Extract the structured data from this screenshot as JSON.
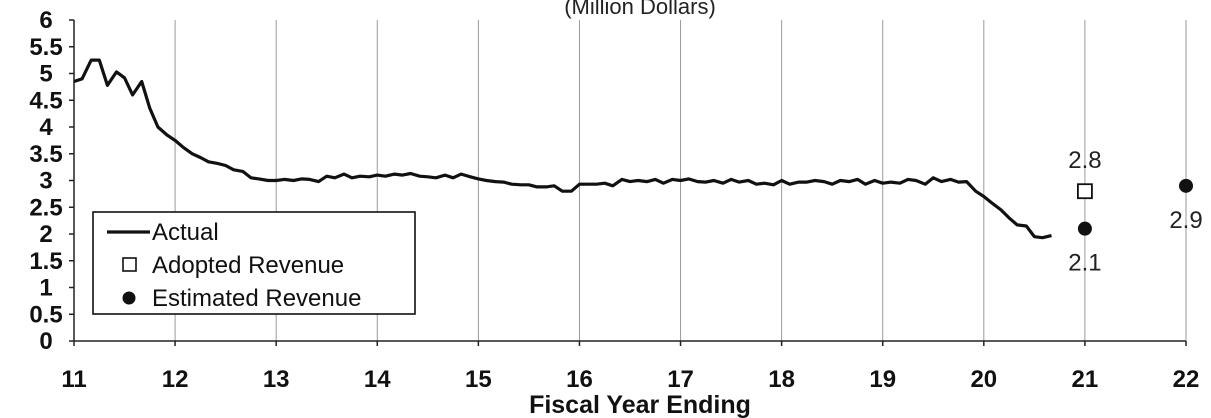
{
  "chart_data": {
    "type": "line",
    "subtitle": "(Million Dollars)",
    "xlabel": "Fiscal Year Ending",
    "ylabel": "",
    "xlim": [
      11,
      22
    ],
    "ylim": [
      0,
      6
    ],
    "x_ticks": [
      "11",
      "12",
      "13",
      "14",
      "15",
      "16",
      "17",
      "18",
      "19",
      "20",
      "21",
      "22"
    ],
    "y_ticks": [
      "0",
      "0.5",
      "1",
      "1.5",
      "2",
      "2.5",
      "3",
      "3.5",
      "4",
      "4.5",
      "5",
      "5.5",
      "6"
    ],
    "grid": "vertical",
    "legend_position": "bottom-left",
    "legend": [
      "Actual",
      "Adopted Revenue",
      "Estimated Revenue"
    ],
    "series": [
      {
        "name": "Actual",
        "style": "line",
        "color": "#111111",
        "x": [
          11.0,
          11.08,
          11.17,
          11.25,
          11.33,
          11.42,
          11.5,
          11.58,
          11.67,
          11.75,
          11.83,
          11.92,
          12.0,
          12.08,
          12.17,
          12.25,
          12.33,
          12.42,
          12.5,
          12.58,
          12.67,
          12.75,
          12.83,
          12.92,
          13.0,
          13.08,
          13.17,
          13.25,
          13.33,
          13.42,
          13.5,
          13.58,
          13.67,
          13.75,
          13.83,
          13.92,
          14.0,
          14.08,
          14.17,
          14.25,
          14.33,
          14.42,
          14.5,
          14.58,
          14.67,
          14.75,
          14.83,
          14.92,
          15.0,
          15.08,
          15.17,
          15.25,
          15.33,
          15.42,
          15.5,
          15.58,
          15.67,
          15.75,
          15.83,
          15.92,
          16.0,
          16.08,
          16.17,
          16.25,
          16.33,
          16.42,
          16.5,
          16.58,
          16.67,
          16.75,
          16.83,
          16.92,
          17.0,
          17.08,
          17.17,
          17.25,
          17.33,
          17.42,
          17.5,
          17.58,
          17.67,
          17.75,
          17.83,
          17.92,
          18.0,
          18.08,
          18.17,
          18.25,
          18.33,
          18.42,
          18.5,
          18.58,
          18.67,
          18.75,
          18.83,
          18.92,
          19.0,
          19.08,
          19.17,
          19.25,
          19.33,
          19.42,
          19.5,
          19.58,
          19.67,
          19.75,
          19.83,
          19.92,
          20.0,
          20.08,
          20.17,
          20.25,
          20.33,
          20.42,
          20.5,
          20.58,
          20.67
        ],
        "y": [
          4.85,
          4.9,
          5.25,
          5.25,
          4.78,
          5.03,
          4.92,
          4.6,
          4.85,
          4.35,
          4.0,
          3.85,
          3.75,
          3.62,
          3.5,
          3.43,
          3.35,
          3.32,
          3.28,
          3.2,
          3.17,
          3.05,
          3.03,
          3.0,
          3.0,
          3.02,
          3.0,
          3.03,
          3.02,
          2.98,
          3.08,
          3.05,
          3.12,
          3.05,
          3.08,
          3.07,
          3.1,
          3.08,
          3.12,
          3.1,
          3.13,
          3.08,
          3.07,
          3.05,
          3.1,
          3.05,
          3.12,
          3.07,
          3.03,
          3.0,
          2.98,
          2.97,
          2.93,
          2.92,
          2.92,
          2.88,
          2.88,
          2.9,
          2.8,
          2.8,
          2.93,
          2.93,
          2.93,
          2.95,
          2.9,
          3.02,
          2.98,
          3.0,
          2.98,
          3.02,
          2.95,
          3.02,
          3.0,
          3.03,
          2.98,
          2.97,
          3.0,
          2.95,
          3.02,
          2.97,
          3.0,
          2.93,
          2.95,
          2.92,
          3.0,
          2.93,
          2.97,
          2.97,
          3.0,
          2.98,
          2.93,
          3.0,
          2.98,
          3.02,
          2.93,
          3.0,
          2.95,
          2.97,
          2.95,
          3.02,
          3.0,
          2.93,
          3.05,
          2.98,
          3.02,
          2.97,
          2.98,
          2.8,
          2.7,
          2.58,
          2.45,
          2.3,
          2.17,
          2.15,
          1.95,
          1.93,
          1.97
        ]
      },
      {
        "name": "Adopted Revenue",
        "style": "open-square",
        "x": [
          21
        ],
        "y": [
          2.8
        ],
        "labels": [
          "2.8"
        ]
      },
      {
        "name": "Estimated Revenue",
        "style": "filled-circle",
        "x": [
          21,
          22
        ],
        "y": [
          2.1,
          2.9
        ],
        "labels": [
          "2.1",
          "2.9"
        ]
      }
    ]
  }
}
